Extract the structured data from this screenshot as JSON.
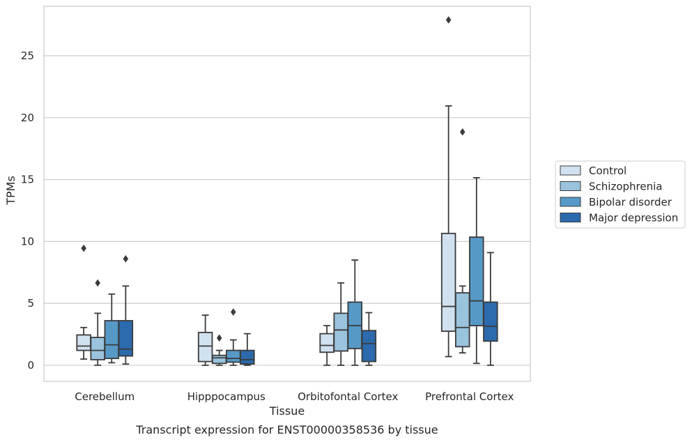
{
  "chart_data": {
    "type": "box",
    "caption": "Transcript expression for ENST00000358536 by tissue",
    "xlabel": "Tissue",
    "ylabel": "TPMs",
    "ylim": [
      -1.3,
      29.0
    ],
    "yticks": [
      0,
      5,
      10,
      15,
      20,
      25
    ],
    "grid": "horizontal",
    "legend_position": "right, outside plot",
    "categories": [
      "Cerebellum",
      "Hipppocampus",
      "Orbitofontal Cortex",
      "Prefrontal Cortex"
    ],
    "series": [
      {
        "name": "Control",
        "color": "#d2e1f0",
        "boxes": [
          {
            "whislo": 0.5,
            "q1": 1.2,
            "med": 1.55,
            "q3": 2.45,
            "whishi": 3.05,
            "fliers": [
              9.45
            ]
          },
          {
            "whislo": 0.0,
            "q1": 0.3,
            "med": 1.55,
            "q3": 2.65,
            "whishi": 4.05,
            "fliers": []
          },
          {
            "whislo": 0.0,
            "q1": 1.05,
            "med": 1.6,
            "q3": 2.55,
            "whishi": 3.2,
            "fliers": []
          },
          {
            "whislo": 0.7,
            "q1": 2.75,
            "med": 4.75,
            "q3": 10.65,
            "whishi": 20.95,
            "fliers": [
              27.9
            ]
          }
        ]
      },
      {
        "name": "Schizophrenia",
        "color": "#9ac3dd",
        "boxes": [
          {
            "whislo": 0.0,
            "q1": 0.45,
            "med": 1.2,
            "q3": 2.25,
            "whishi": 4.2,
            "fliers": [
              6.65
            ]
          },
          {
            "whislo": 0.0,
            "q1": 0.15,
            "med": 0.6,
            "q3": 0.8,
            "whishi": 1.2,
            "fliers": [
              2.2
            ]
          },
          {
            "whislo": 0.0,
            "q1": 1.15,
            "med": 2.85,
            "q3": 4.2,
            "whishi": 6.65,
            "fliers": []
          },
          {
            "whislo": 1.0,
            "q1": 1.5,
            "med": 3.05,
            "q3": 5.85,
            "whishi": 6.4,
            "fliers": [
              18.85
            ]
          }
        ]
      },
      {
        "name": "Bipolar disorder",
        "color": "#5699c7",
        "boxes": [
          {
            "whislo": 0.2,
            "q1": 0.55,
            "med": 1.65,
            "q3": 3.6,
            "whishi": 5.75,
            "fliers": []
          },
          {
            "whislo": 0.0,
            "q1": 0.25,
            "med": 0.55,
            "q3": 1.2,
            "whishi": 2.05,
            "fliers": [
              4.3
            ]
          },
          {
            "whislo": 0.0,
            "q1": 1.35,
            "med": 3.2,
            "q3": 5.1,
            "whishi": 8.5,
            "fliers": []
          },
          {
            "whislo": 0.15,
            "q1": 3.2,
            "med": 5.2,
            "q3": 10.35,
            "whishi": 15.15,
            "fliers": []
          }
        ]
      },
      {
        "name": "Major depression",
        "color": "#2b6aad",
        "boxes": [
          {
            "whislo": 0.1,
            "q1": 0.75,
            "med": 1.3,
            "q3": 3.6,
            "whishi": 6.4,
            "fliers": [
              8.6
            ]
          },
          {
            "whislo": 0.0,
            "q1": 0.1,
            "med": 0.45,
            "q3": 1.2,
            "whishi": 2.55,
            "fliers": []
          },
          {
            "whislo": 0.0,
            "q1": 0.3,
            "med": 1.75,
            "q3": 2.8,
            "whishi": 4.25,
            "fliers": []
          },
          {
            "whislo": 0.0,
            "q1": 1.95,
            "med": 3.15,
            "q3": 5.1,
            "whishi": 9.1,
            "fliers": []
          }
        ]
      }
    ]
  }
}
